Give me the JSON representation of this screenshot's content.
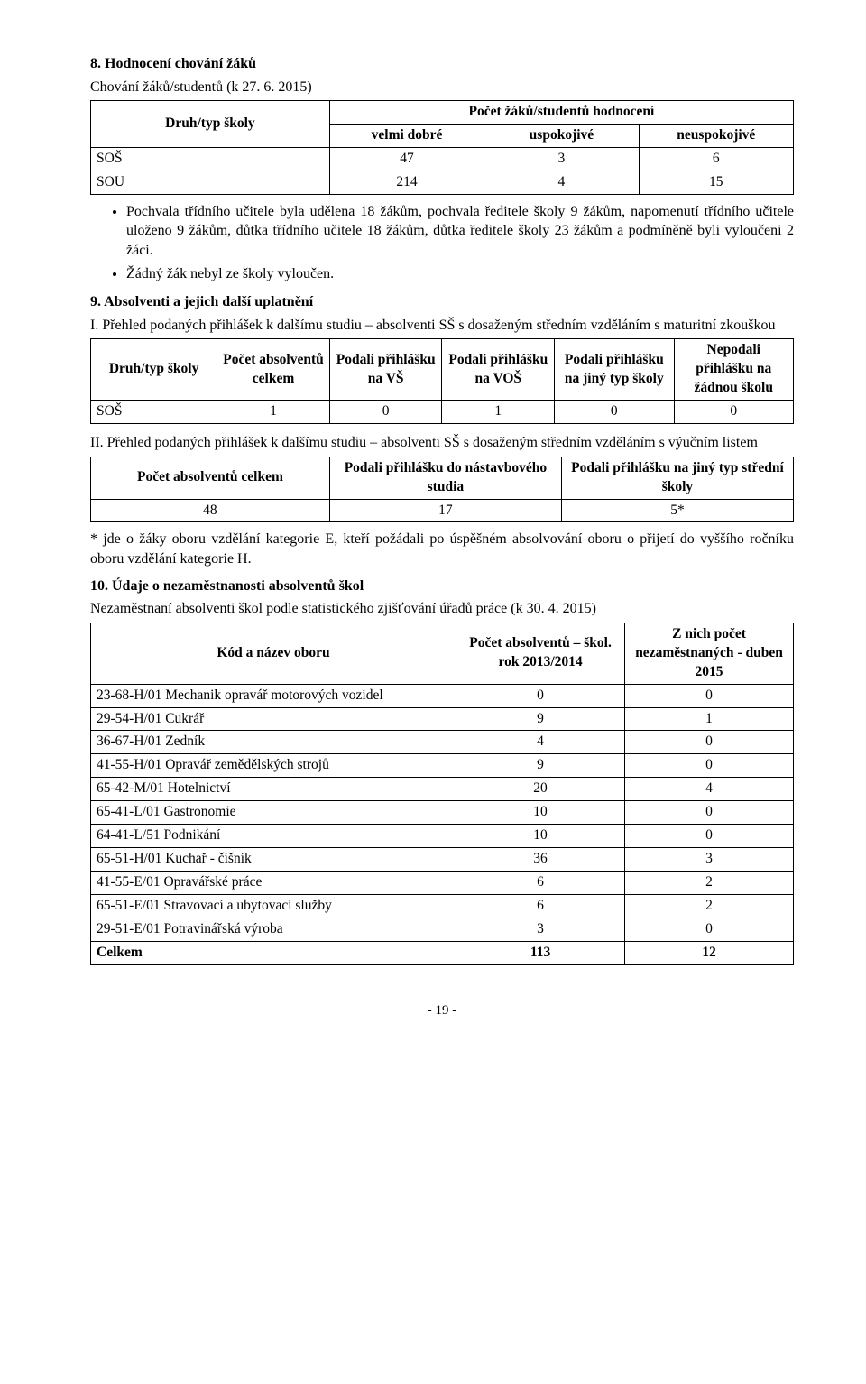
{
  "s8": {
    "title": "8. Hodnocení chování žáků",
    "subtitle": "Chování žáků/studentů (k 27. 6. 2015)",
    "table": {
      "col_widths": [
        "34%",
        "22%",
        "22%",
        "22%"
      ],
      "head_row1_col0": "Druh/typ školy",
      "head_row1_span": "Počet žáků/studentů hodnocení",
      "head_row2": [
        "velmi dobré",
        "uspokojivé",
        "neuspokojivé"
      ],
      "rows": [
        [
          "SOŠ",
          "47",
          "3",
          "6"
        ],
        [
          "SOU",
          "214",
          "4",
          "15"
        ]
      ]
    },
    "bullets": [
      "Pochvala třídního učitele byla udělena 18 žákům, pochvala ředitele školy 9 žákům, napomenutí třídního učitele uloženo 9 žákům, důtka třídního učitele 18 žákům, důtka ředitele školy 23 žákům a podmíněně byli vyloučeni 2 žáci.",
      "Žádný žák nebyl ze školy vyloučen."
    ]
  },
  "s9": {
    "title": "9. Absolventi a jejich další uplatnění",
    "p1_intro": "I. Přehled podaných přihlášek k dalšímu studiu – absolventi SŠ s dosaženým středním vzděláním s maturitní zkouškou",
    "table1": {
      "col_widths": [
        "18%",
        "16%",
        "16%",
        "16%",
        "17%",
        "17%"
      ],
      "headers": [
        "Druh/typ školy",
        "Počet absolventů celkem",
        "Podali přihlášku na VŠ",
        "Podali přihlášku na VOŠ",
        "Podali přihlášku na jiný typ školy",
        "Nepodali přihlášku na žádnou školu"
      ],
      "rows": [
        [
          "SOŠ",
          "1",
          "0",
          "1",
          "0",
          "0"
        ]
      ]
    },
    "p2_intro": "II. Přehled podaných přihlášek k dalšímu studiu – absolventi SŠ s dosaženým středním vzděláním s výučním listem",
    "table2": {
      "col_widths": [
        "34%",
        "33%",
        "33%"
      ],
      "headers": [
        "Počet absolventů celkem",
        "Podali přihlášku do nástavbového studia",
        "Podali přihlášku na jiný typ střední školy"
      ],
      "rows": [
        [
          "48",
          "17",
          "5*"
        ]
      ]
    },
    "footnote": "* jde o žáky oboru vzdělání kategorie E, kteří požádali po úspěšném absolvování oboru o přijetí do vyššího ročníku oboru vzdělání kategorie H."
  },
  "s10": {
    "title": "10. Údaje o nezaměstnanosti absolventů škol",
    "subtitle": "Nezaměstnaní absolventi škol podle statistického zjišťování úřadů práce (k 30. 4. 2015)",
    "table": {
      "col_widths": [
        "52%",
        "24%",
        "24%"
      ],
      "headers": [
        "Kód a název oboru",
        "Počet absolventů – škol. rok 2013/2014",
        "Z nich počet nezaměstnaných - duben 2015"
      ],
      "rows": [
        [
          "23-68-H/01 Mechanik opravář motorových vozidel",
          "0",
          "0"
        ],
        [
          "29-54-H/01 Cukrář",
          "9",
          "1"
        ],
        [
          "36-67-H/01 Zedník",
          "4",
          "0"
        ],
        [
          "41-55-H/01 Opravář zemědělských strojů",
          "9",
          "0"
        ],
        [
          "65-42-M/01 Hotelnictví",
          "20",
          "4"
        ],
        [
          "65-41-L/01 Gastronomie",
          "10",
          "0"
        ],
        [
          "64-41-L/51 Podnikání",
          "10",
          "0"
        ],
        [
          "65-51-H/01 Kuchař - číšník",
          "36",
          "3"
        ],
        [
          "41-55-E/01 Opravářské práce",
          "6",
          "2"
        ],
        [
          "65-51-E/01 Stravovací a ubytovací služby",
          "6",
          "2"
        ],
        [
          "29-51-E/01 Potravinářská výroba",
          "3",
          "0"
        ]
      ],
      "total_label": "Celkem",
      "total": [
        "113",
        "12"
      ]
    }
  },
  "page_number": "- 19 -"
}
